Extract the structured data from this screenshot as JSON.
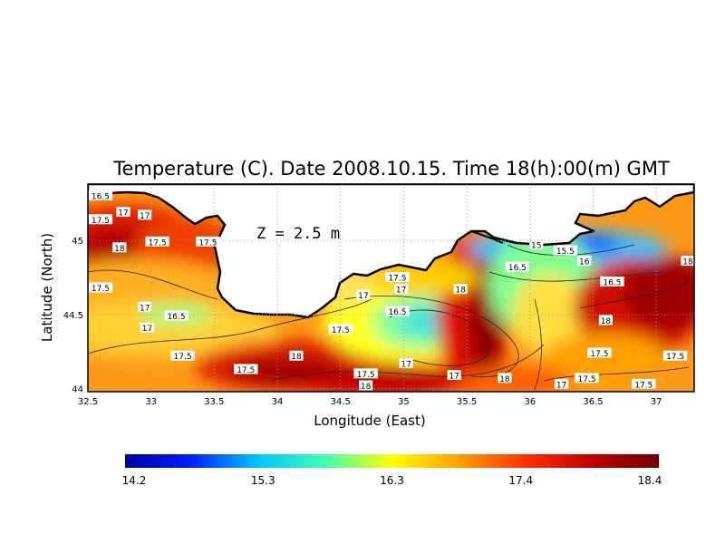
{
  "chart_data": {
    "type": "heatmap",
    "title": "Temperature (C). Date 2008.10.15. Time 18(h):00(m) GMT",
    "xlabel": "Longitude (East)",
    "ylabel": "Latitude (North)",
    "annotation": "Z = 2.5 m",
    "xlim": [
      32.5,
      37.3
    ],
    "ylim": [
      43.98,
      45.38
    ],
    "x_ticks": [
      "32.5",
      "33",
      "33.5",
      "34",
      "34.5",
      "35",
      "35.5",
      "36",
      "36.5",
      "37"
    ],
    "y_ticks": [
      "44",
      "44.5",
      "45"
    ],
    "grid": true,
    "colorbar": {
      "ticks": [
        "14.2",
        "15.3",
        "16.3",
        "17.4",
        "18.4"
      ],
      "range": [
        14.2,
        18.4
      ],
      "colors": [
        "#0000a0",
        "#0020ff",
        "#00c8ff",
        "#40ffb0",
        "#ffff00",
        "#ffa000",
        "#ff3000",
        "#c00000",
        "#700000"
      ]
    },
    "contour_labels": [
      {
        "text": "16.5",
        "lon": 32.6,
        "lat": 45.3
      },
      {
        "text": "17",
        "lon": 32.78,
        "lat": 45.19
      },
      {
        "text": "17",
        "lon": 32.95,
        "lat": 45.17
      },
      {
        "text": "17.5",
        "lon": 32.6,
        "lat": 45.14
      },
      {
        "text": "18",
        "lon": 32.75,
        "lat": 44.95
      },
      {
        "text": "17.5",
        "lon": 33.05,
        "lat": 44.99
      },
      {
        "text": "17.5",
        "lon": 33.45,
        "lat": 44.99
      },
      {
        "text": "17.5",
        "lon": 32.6,
        "lat": 44.68
      },
      {
        "text": "17",
        "lon": 32.95,
        "lat": 44.55
      },
      {
        "text": "16.5",
        "lon": 33.2,
        "lat": 44.49
      },
      {
        "text": "17",
        "lon": 32.97,
        "lat": 44.41
      },
      {
        "text": "17.5",
        "lon": 33.25,
        "lat": 44.22
      },
      {
        "text": "17.5",
        "lon": 33.75,
        "lat": 44.13
      },
      {
        "text": "18",
        "lon": 34.15,
        "lat": 44.22
      },
      {
        "text": "17.5",
        "lon": 34.5,
        "lat": 44.4
      },
      {
        "text": "17",
        "lon": 34.68,
        "lat": 44.63
      },
      {
        "text": "17.5",
        "lon": 34.95,
        "lat": 44.75
      },
      {
        "text": "17",
        "lon": 34.98,
        "lat": 44.67
      },
      {
        "text": "16.5",
        "lon": 34.95,
        "lat": 44.52
      },
      {
        "text": "18",
        "lon": 35.45,
        "lat": 44.67
      },
      {
        "text": "17",
        "lon": 35.02,
        "lat": 44.17
      },
      {
        "text": "17.5",
        "lon": 34.7,
        "lat": 44.1
      },
      {
        "text": "18",
        "lon": 34.7,
        "lat": 44.02
      },
      {
        "text": "17",
        "lon": 35.4,
        "lat": 44.09
      },
      {
        "text": "18",
        "lon": 35.8,
        "lat": 44.07
      },
      {
        "text": "15",
        "lon": 36.05,
        "lat": 44.97
      },
      {
        "text": "15.5",
        "lon": 36.28,
        "lat": 44.93
      },
      {
        "text": "16",
        "lon": 36.43,
        "lat": 44.86
      },
      {
        "text": "16.5",
        "lon": 35.9,
        "lat": 44.82
      },
      {
        "text": "16.5",
        "lon": 36.65,
        "lat": 44.72
      },
      {
        "text": "18",
        "lon": 37.25,
        "lat": 44.86
      },
      {
        "text": "18",
        "lon": 36.6,
        "lat": 44.46
      },
      {
        "text": "17.5",
        "lon": 36.55,
        "lat": 44.24
      },
      {
        "text": "17.5",
        "lon": 37.15,
        "lat": 44.22
      },
      {
        "text": "17",
        "lon": 36.25,
        "lat": 44.03
      },
      {
        "text": "17.5",
        "lon": 36.45,
        "lat": 44.07
      },
      {
        "text": "17.5",
        "lon": 36.9,
        "lat": 44.03
      }
    ]
  }
}
